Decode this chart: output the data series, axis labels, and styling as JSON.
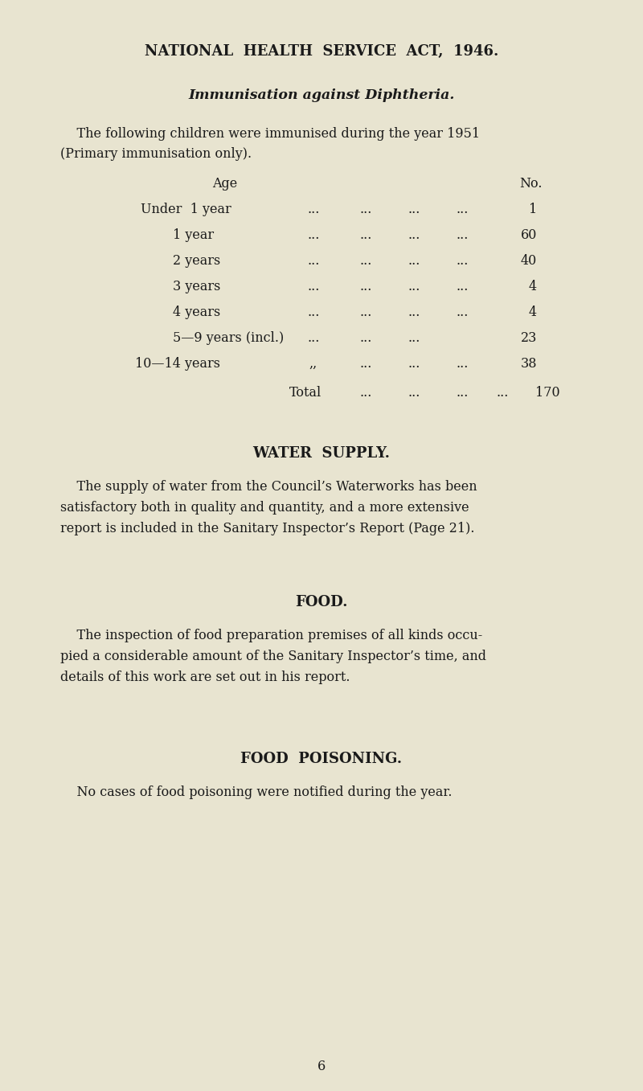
{
  "bg_color": "#e8e4d0",
  "text_color": "#1a1a1a",
  "title1": "NATIONAL  HEALTH  SERVICE  ACT,  1946.",
  "title2": "Immunisation against Diphtheria.",
  "para1a": "    The following children were immunised during the year 1951",
  "para1b": "(Primary immunisation only).",
  "col_age": "Age",
  "col_no": "No.",
  "table_rows": [
    [
      "Under  1 year",
      "...",
      "...",
      "...",
      "...",
      "1",
      false
    ],
    [
      "1 year",
      "...",
      "...",
      "...",
      "...",
      "60",
      true
    ],
    [
      "2 years",
      "...",
      "...",
      "...",
      "...",
      "40",
      true
    ],
    [
      "3 years",
      "...",
      "...",
      "...",
      "...",
      "4",
      true
    ],
    [
      "4 years",
      "...",
      "...",
      "...",
      "...",
      "4",
      true
    ],
    [
      "5—9 years (incl.)",
      "...",
      "...",
      "...",
      "",
      "23",
      true
    ],
    [
      "10—14 years",
      ",,",
      "...",
      "...",
      "...",
      "38",
      false
    ]
  ],
  "total_label": "Total",
  "total_value": "170",
  "section2_title": "WATER  SUPPLY.",
  "section2_para": "    The supply of water from the Council’s Waterworks has been satisfactory both in quality and quantity, and a more extensive report is included in the Sanitary Inspector’s Report (Page 21).",
  "section3_title": "FOOD.",
  "section3_para": "    The inspection of food preparation premises of all kinds occu-pied a considerable amount of the Sanitary Inspector’s time, and details of this work are set out in his report.",
  "section4_title": "FOOD  POISONING.",
  "section4_para": "    No cases of food poisoning were notified during the year.",
  "page_number": "6"
}
